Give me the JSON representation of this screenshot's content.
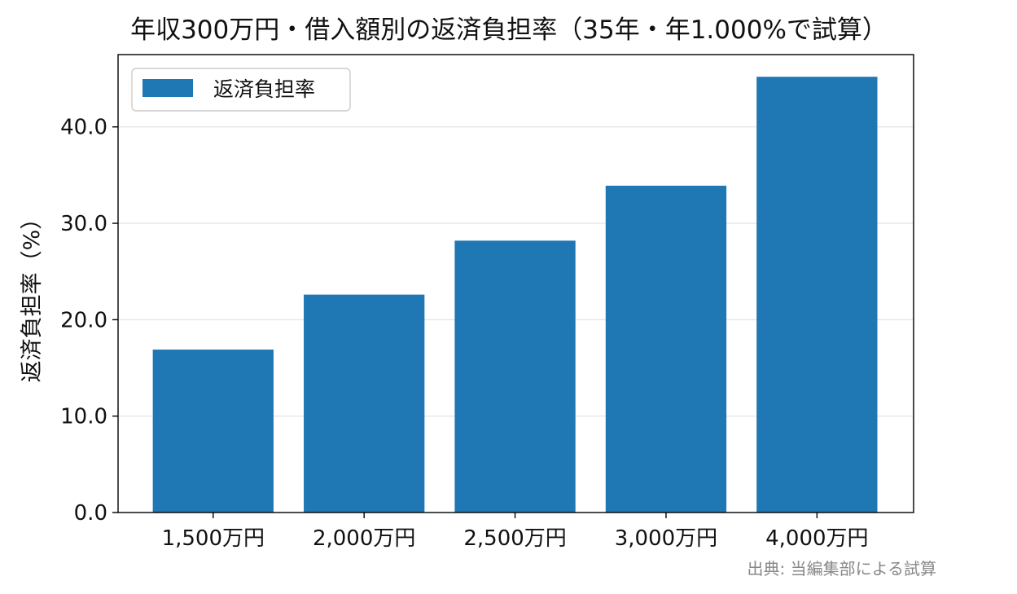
{
  "chart_data": {
    "type": "bar",
    "title": "年収300万円・借入額別の返済負担率（35年・年1.000%で試算）",
    "xlabel": "",
    "ylabel": "返済負担率（%）",
    "categories": [
      "1,500万円",
      "2,000万円",
      "2,500万円",
      "3,000万円",
      "4,000万円"
    ],
    "series": [
      {
        "name": "返済負担率",
        "values": [
          16.9,
          22.6,
          28.2,
          33.9,
          45.2
        ],
        "color": "#1f77b4"
      }
    ],
    "ylim": [
      0,
      47.5
    ],
    "yticks": [
      0,
      10,
      20,
      30,
      40
    ],
    "ytick_labels": [
      "0.0",
      "10.0",
      "20.0",
      "30.0",
      "40.0"
    ],
    "grid": "y",
    "legend_position": "top-left",
    "source_note": "出典: 当編集部による試算"
  }
}
